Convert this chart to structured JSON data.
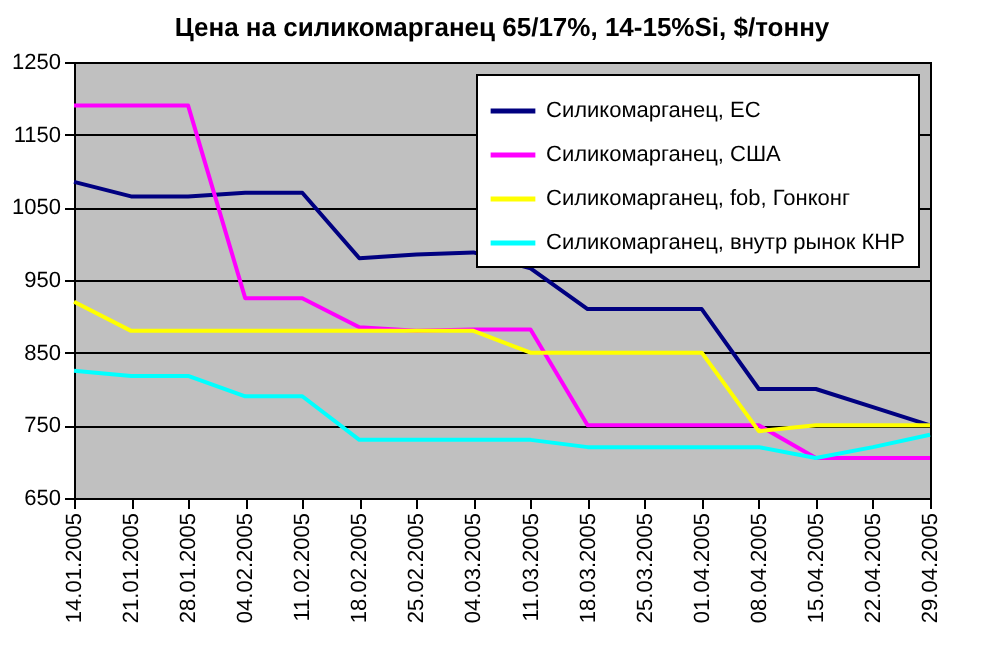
{
  "chart_data": {
    "type": "line",
    "title": "Цена на силикомарганец 65/17%, 14-15%Si, $/тонну",
    "categories": [
      "14.01.2005",
      "21.01.2005",
      "28.01.2005",
      "04.02.2005",
      "11.02.2005",
      "18.02.2005",
      "25.02.2005",
      "04.03.2005",
      "11.03.2005",
      "18.03.2005",
      "25.03.2005",
      "01.04.2005",
      "08.04.2005",
      "15.04.2005",
      "22.04.2005",
      "29.04.2005"
    ],
    "series": [
      {
        "name": "Силикомарганец, ЕС",
        "color": "#000080",
        "values": [
          1085,
          1065,
          1065,
          1070,
          1070,
          980,
          985,
          988,
          966,
          910,
          910,
          910,
          800,
          800,
          775,
          750
        ]
      },
      {
        "name": "Силикомарганец, США",
        "color": "#ff00ff",
        "values": [
          1190,
          1190,
          1190,
          925,
          925,
          885,
          880,
          882,
          882,
          750,
          750,
          750,
          750,
          705,
          705,
          705
        ]
      },
      {
        "name": "Силикомарганец, fob, Гонконг",
        "color": "#ffff00",
        "values": [
          920,
          880,
          880,
          880,
          880,
          880,
          880,
          880,
          850,
          850,
          850,
          850,
          742,
          750,
          750,
          750
        ]
      },
      {
        "name": "Силикомарганец, внутр рынок КНР",
        "color": "#00ffff",
        "values": [
          825,
          818,
          818,
          790,
          790,
          730,
          730,
          730,
          730,
          720,
          720,
          720,
          720,
          705,
          720,
          737
        ]
      }
    ],
    "ylim": [
      650,
      1250
    ],
    "yticks": [
      650,
      750,
      850,
      950,
      1050,
      1150,
      1250
    ],
    "grid": "y",
    "legend": "top right",
    "marker": "none",
    "line_style": "solid"
  }
}
